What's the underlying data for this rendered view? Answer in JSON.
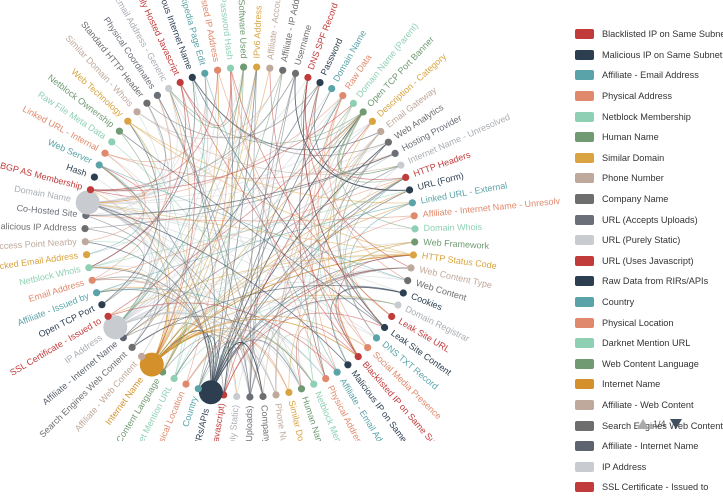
{
  "legend": {
    "items": [
      {
        "label": "Blacklisted IP on Same Subnet",
        "color": "#c23b3b"
      },
      {
        "label": "Malicious IP on Same Subnet",
        "color": "#2c3e50"
      },
      {
        "label": "Affiliate - Email Address",
        "color": "#5aa3a8"
      },
      {
        "label": "Physical Address",
        "color": "#e0896c"
      },
      {
        "label": "Netblock Membership",
        "color": "#8fd0b4"
      },
      {
        "label": "Human Name",
        "color": "#6f9a72"
      },
      {
        "label": "Similar Domain",
        "color": "#d9a441"
      },
      {
        "label": "Phone Number",
        "color": "#bfa99c"
      },
      {
        "label": "Company Name",
        "color": "#6e6e6e"
      },
      {
        "label": "URL (Accepts Uploads)",
        "color": "#6a6f78"
      },
      {
        "label": "URL (Purely Static)",
        "color": "#c8ccd0"
      },
      {
        "label": "URL (Uses Javascript)",
        "color": "#c23b3b"
      },
      {
        "label": "Raw Data from RIRs/APIs",
        "color": "#2c3e50"
      },
      {
        "label": "Country",
        "color": "#5aa3a8"
      },
      {
        "label": "Physical Location",
        "color": "#e0896c"
      },
      {
        "label": "Darknet Mention URL",
        "color": "#8fd0b4"
      },
      {
        "label": "Web Content Language",
        "color": "#6f9a72"
      },
      {
        "label": "Internet Name",
        "color": "#d4902b"
      },
      {
        "label": "Affiliate - Web Content",
        "color": "#bfa99c"
      },
      {
        "label": "Search Engines Web Content",
        "color": "#6e6e6e"
      },
      {
        "label": "Affiliate - Internet Name",
        "color": "#5d6470"
      },
      {
        "label": "IP Address",
        "color": "#c8ccd0"
      },
      {
        "label": "SSL Certificate - Issued to",
        "color": "#c23b3b"
      }
    ]
  },
  "pager": {
    "label": "1/4"
  },
  "nodes": [
    {
      "label": "Username",
      "color": "#6e6e6e"
    },
    {
      "label": "DNS SPF Record",
      "color": "#c23b3b"
    },
    {
      "label": "Password",
      "color": "#2c3e50"
    },
    {
      "label": "Domain Name",
      "color": "#5aa3a8"
    },
    {
      "label": "Raw Data",
      "color": "#e0896c"
    },
    {
      "label": "Domain Name (Parent)",
      "color": "#8fd0b4"
    },
    {
      "label": "Open TCP Port Banner",
      "color": "#6f9a72"
    },
    {
      "label": "Description - Category",
      "color": "#d9a441"
    },
    {
      "label": "Email Gateway",
      "color": "#bfa99c"
    },
    {
      "label": "Web Analytics",
      "color": "#6e6e6e"
    },
    {
      "label": "Hosting Provider",
      "color": "#6a6f78"
    },
    {
      "label": "Internet Name - Unresolved",
      "color": "#c8ccd0"
    },
    {
      "label": "HTTP Headers",
      "color": "#c23b3b"
    },
    {
      "label": "URL (Form)",
      "color": "#2c3e50"
    },
    {
      "label": "Linked URL - External",
      "color": "#5aa3a8"
    },
    {
      "label": "Affiliate - Internet Name - Unresolved",
      "color": "#e0896c"
    },
    {
      "label": "Domain Whois",
      "color": "#8fd0b4"
    },
    {
      "label": "Web Framework",
      "color": "#6f9a72"
    },
    {
      "label": "HTTP Status Code",
      "color": "#d9a441"
    },
    {
      "label": "Web Content Type",
      "color": "#bfa99c"
    },
    {
      "label": "Web Content",
      "color": "#6e6e6e"
    },
    {
      "label": "Cookies",
      "color": "#2c3e50"
    },
    {
      "label": "Domain Registrar",
      "color": "#c8ccd0"
    },
    {
      "label": "Leak Site URL",
      "color": "#c23b3b"
    },
    {
      "label": "Leak Site Content",
      "color": "#2c3e50"
    },
    {
      "label": "DNS TXT Record",
      "color": "#5aa3a8"
    },
    {
      "label": "Social Media Presence",
      "color": "#e0896c"
    },
    {
      "label": "Blacklisted IP on Same Subnet",
      "color": "#c23b3b"
    },
    {
      "label": "Malicious IP on Same Subnet",
      "color": "#2c3e50"
    },
    {
      "label": "Affiliate - Email Address",
      "color": "#5aa3a8"
    },
    {
      "label": "Physical Address",
      "color": "#e0896c"
    },
    {
      "label": "Netblock Membership",
      "color": "#8fd0b4"
    },
    {
      "label": "Human Name",
      "color": "#6f9a72"
    },
    {
      "label": "Similar Domain",
      "color": "#d9a441"
    },
    {
      "label": "Phone Number",
      "color": "#bfa99c"
    },
    {
      "label": "Company Name",
      "color": "#6e6e6e"
    },
    {
      "label": "URL (Accepts Uploads)",
      "color": "#6a6f78"
    },
    {
      "label": "URL (Purely Static)",
      "color": "#c8ccd0"
    },
    {
      "label": "URL (Uses Javascript)",
      "color": "#c23b3b"
    },
    {
      "label": "Raw Data from RIRs/APIs",
      "color": "#2c3e50",
      "big": 1
    },
    {
      "label": "Country",
      "color": "#5aa3a8"
    },
    {
      "label": "Physical Location",
      "color": "#e0896c"
    },
    {
      "label": "Darknet Mention URL",
      "color": "#8fd0b4"
    },
    {
      "label": "Web Content Language",
      "color": "#6f9a72"
    },
    {
      "label": "Internet Name",
      "color": "#d4902b",
      "big": 1
    },
    {
      "label": "Affiliate - Web Content",
      "color": "#bfa99c"
    },
    {
      "label": "Search Engines Web Content",
      "color": "#6e6e6e"
    },
    {
      "label": "Affiliate - Internet Name",
      "color": "#5d6470"
    },
    {
      "label": "IP Address",
      "color": "#c8ccd0",
      "big": 1
    },
    {
      "label": "SSL Certificate - Issued to",
      "color": "#c23b3b"
    },
    {
      "label": "Open TCP Port",
      "color": "#2c3e50"
    },
    {
      "label": "Affiliate - Issued by",
      "color": "#5aa3a8"
    },
    {
      "label": "Email Address",
      "color": "#e0896c"
    },
    {
      "label": "Netblock Whois",
      "color": "#8fd0b4"
    },
    {
      "label": "Hacked Email Address",
      "color": "#d9a441"
    },
    {
      "label": "WiFi Access Point Nearby",
      "color": "#bfa99c"
    },
    {
      "label": "Malicious IP Address",
      "color": "#6e6e6e"
    },
    {
      "label": "Co-Hosted Site",
      "color": "#6a6f78"
    },
    {
      "label": "Domain Name",
      "color": "#c8ccd0",
      "big": 1
    },
    {
      "label": "BGP AS Membership",
      "color": "#c23b3b"
    },
    {
      "label": "Hash",
      "color": "#2c3e50"
    },
    {
      "label": "Web Server",
      "color": "#5aa3a8"
    },
    {
      "label": "Linked URL - Internal",
      "color": "#e0896c"
    },
    {
      "label": "Raw File Meta Data",
      "color": "#8fd0b4"
    },
    {
      "label": "Netblock Ownership",
      "color": "#6f9a72"
    },
    {
      "label": "Web Technology",
      "color": "#d9a441"
    },
    {
      "label": "Similar Domain - Whois",
      "color": "#bfa99c"
    },
    {
      "label": "Standard HTTP Header",
      "color": "#6e6e6e"
    },
    {
      "label": "Physical Coordinates",
      "color": "#6a6f78"
    },
    {
      "label": "Email Address - Generic",
      "color": "#c8ccd0"
    },
    {
      "label": "Externally Hosted Javascript",
      "color": "#c23b3b"
    },
    {
      "label": "Malicious Internet Name",
      "color": "#2c3e50"
    },
    {
      "label": "Wikipedia Page Edit",
      "color": "#5aa3a8"
    },
    {
      "label": "Blacklisted IP Address",
      "color": "#e0896c"
    },
    {
      "label": "Compromised Password Hash",
      "color": "#8fd0b4"
    },
    {
      "label": "Software Used",
      "color": "#6f9a72"
    },
    {
      "label": "IPv6 Address",
      "color": "#d9a441"
    },
    {
      "label": "Affiliate - Account on External Site",
      "color": "#bfa99c"
    },
    {
      "label": "Affiliate - IP Address",
      "color": "#6e6e6e"
    }
  ]
}
